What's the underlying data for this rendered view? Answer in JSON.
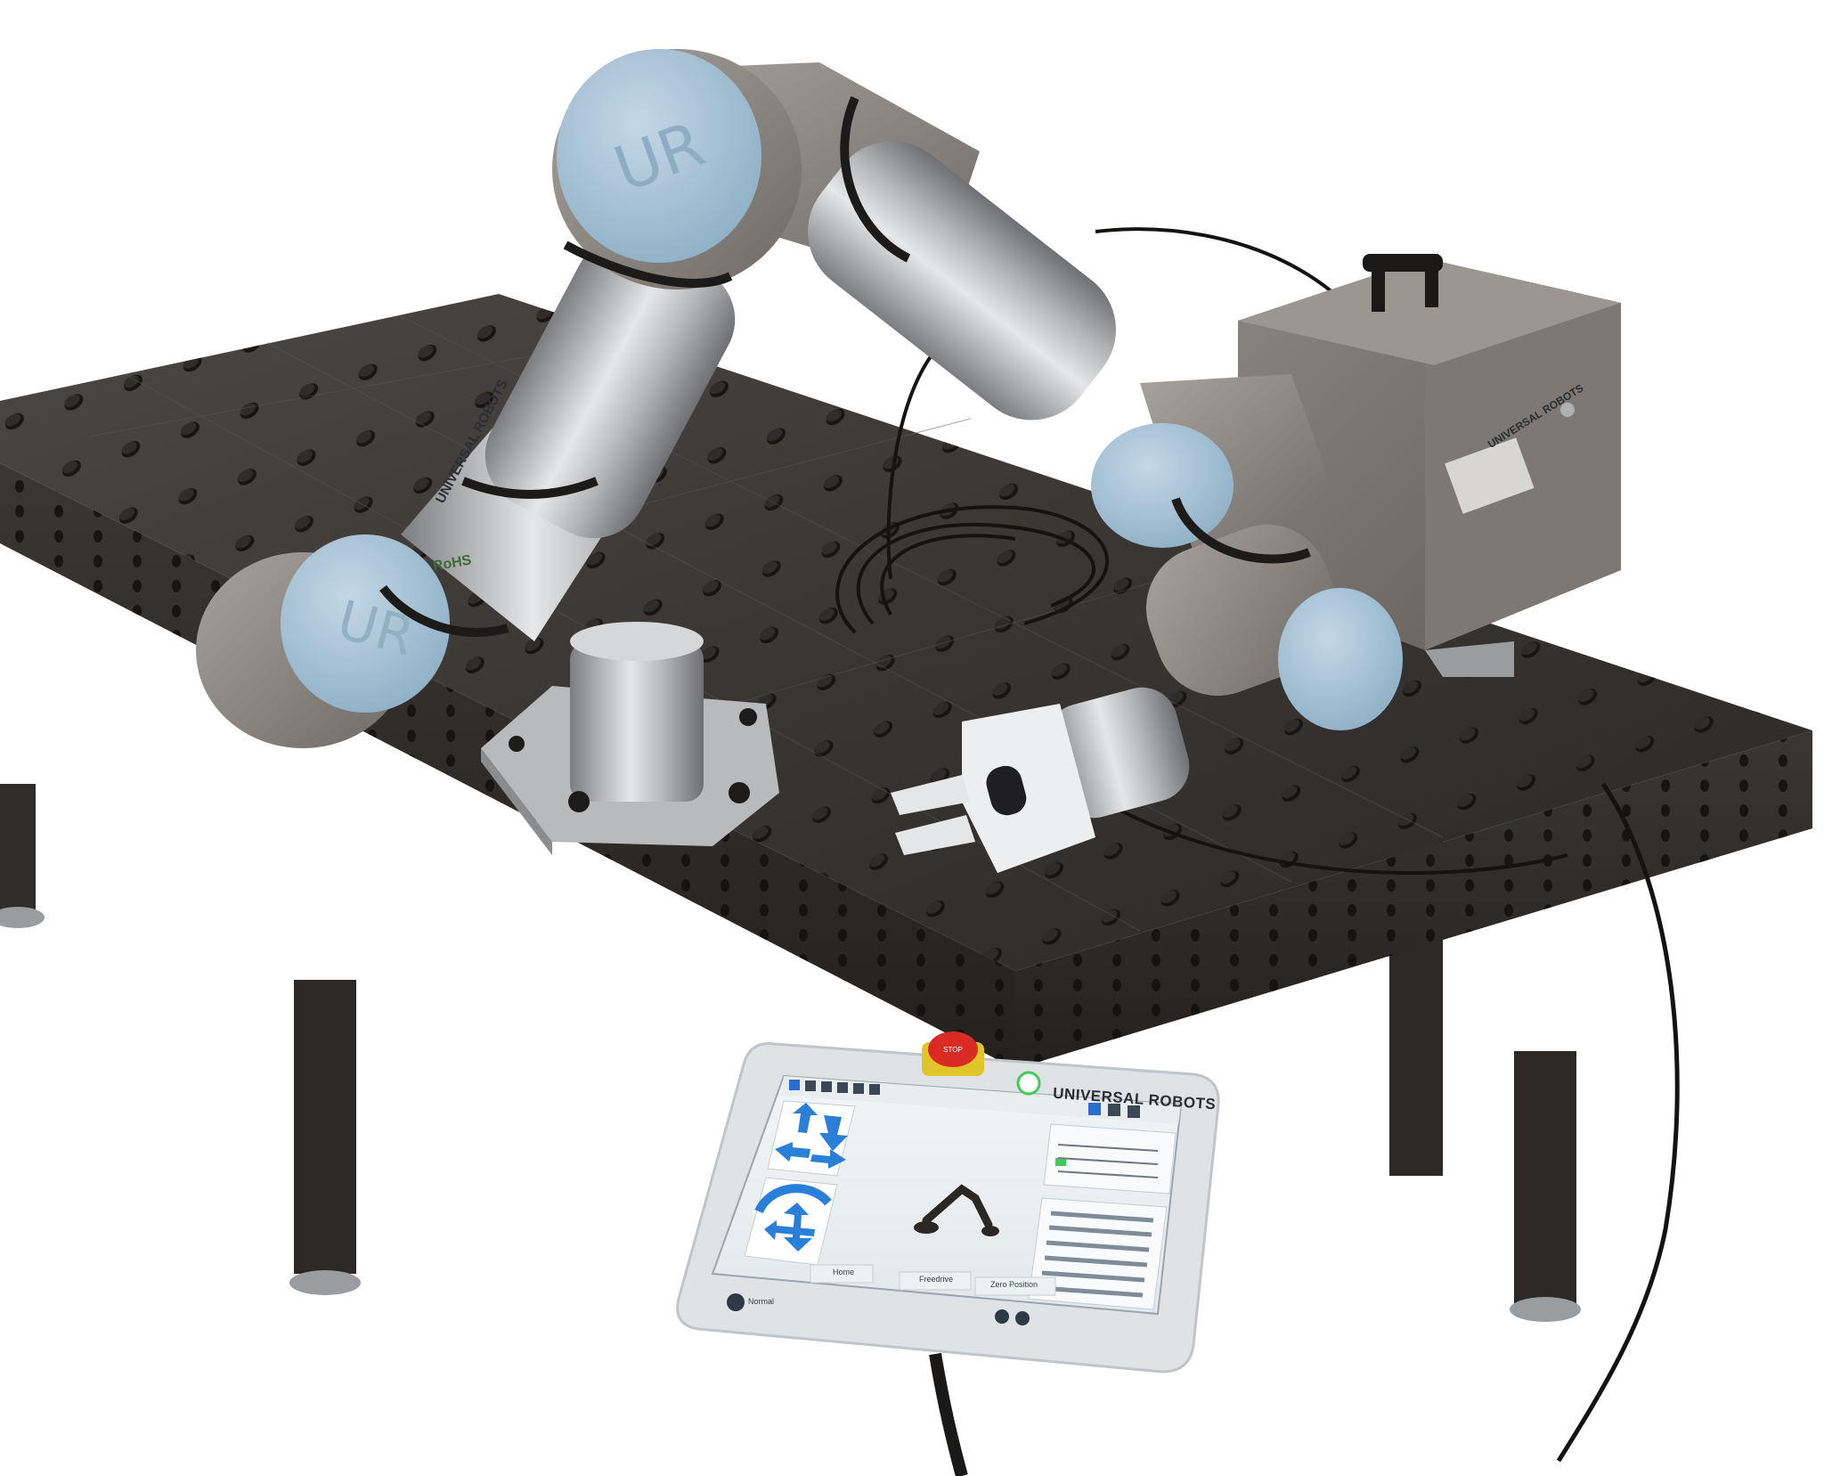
{
  "pendant": {
    "brand": "UNIVERSAL ROBOTS",
    "estop_label": "STOP",
    "buttons": {
      "home": "Home",
      "freedrive": "Freedrive",
      "zero_position": "Zero Position"
    },
    "status": "Normal"
  },
  "robot_arm": {
    "label_upper": "UNIVERSAL ROBOTS",
    "label_control_box": "UNIVERSAL ROBOTS",
    "rohs_mark": "RoHS"
  },
  "colors": {
    "table_top": "#3a3735",
    "arm_cap": "#a9c6da",
    "arm_body": "#8f8a85",
    "pendant_frame": "#dfe3e6",
    "estop": "#d92b23",
    "jog_arrow": "#2a7fd8",
    "status_green": "#43c95a"
  }
}
